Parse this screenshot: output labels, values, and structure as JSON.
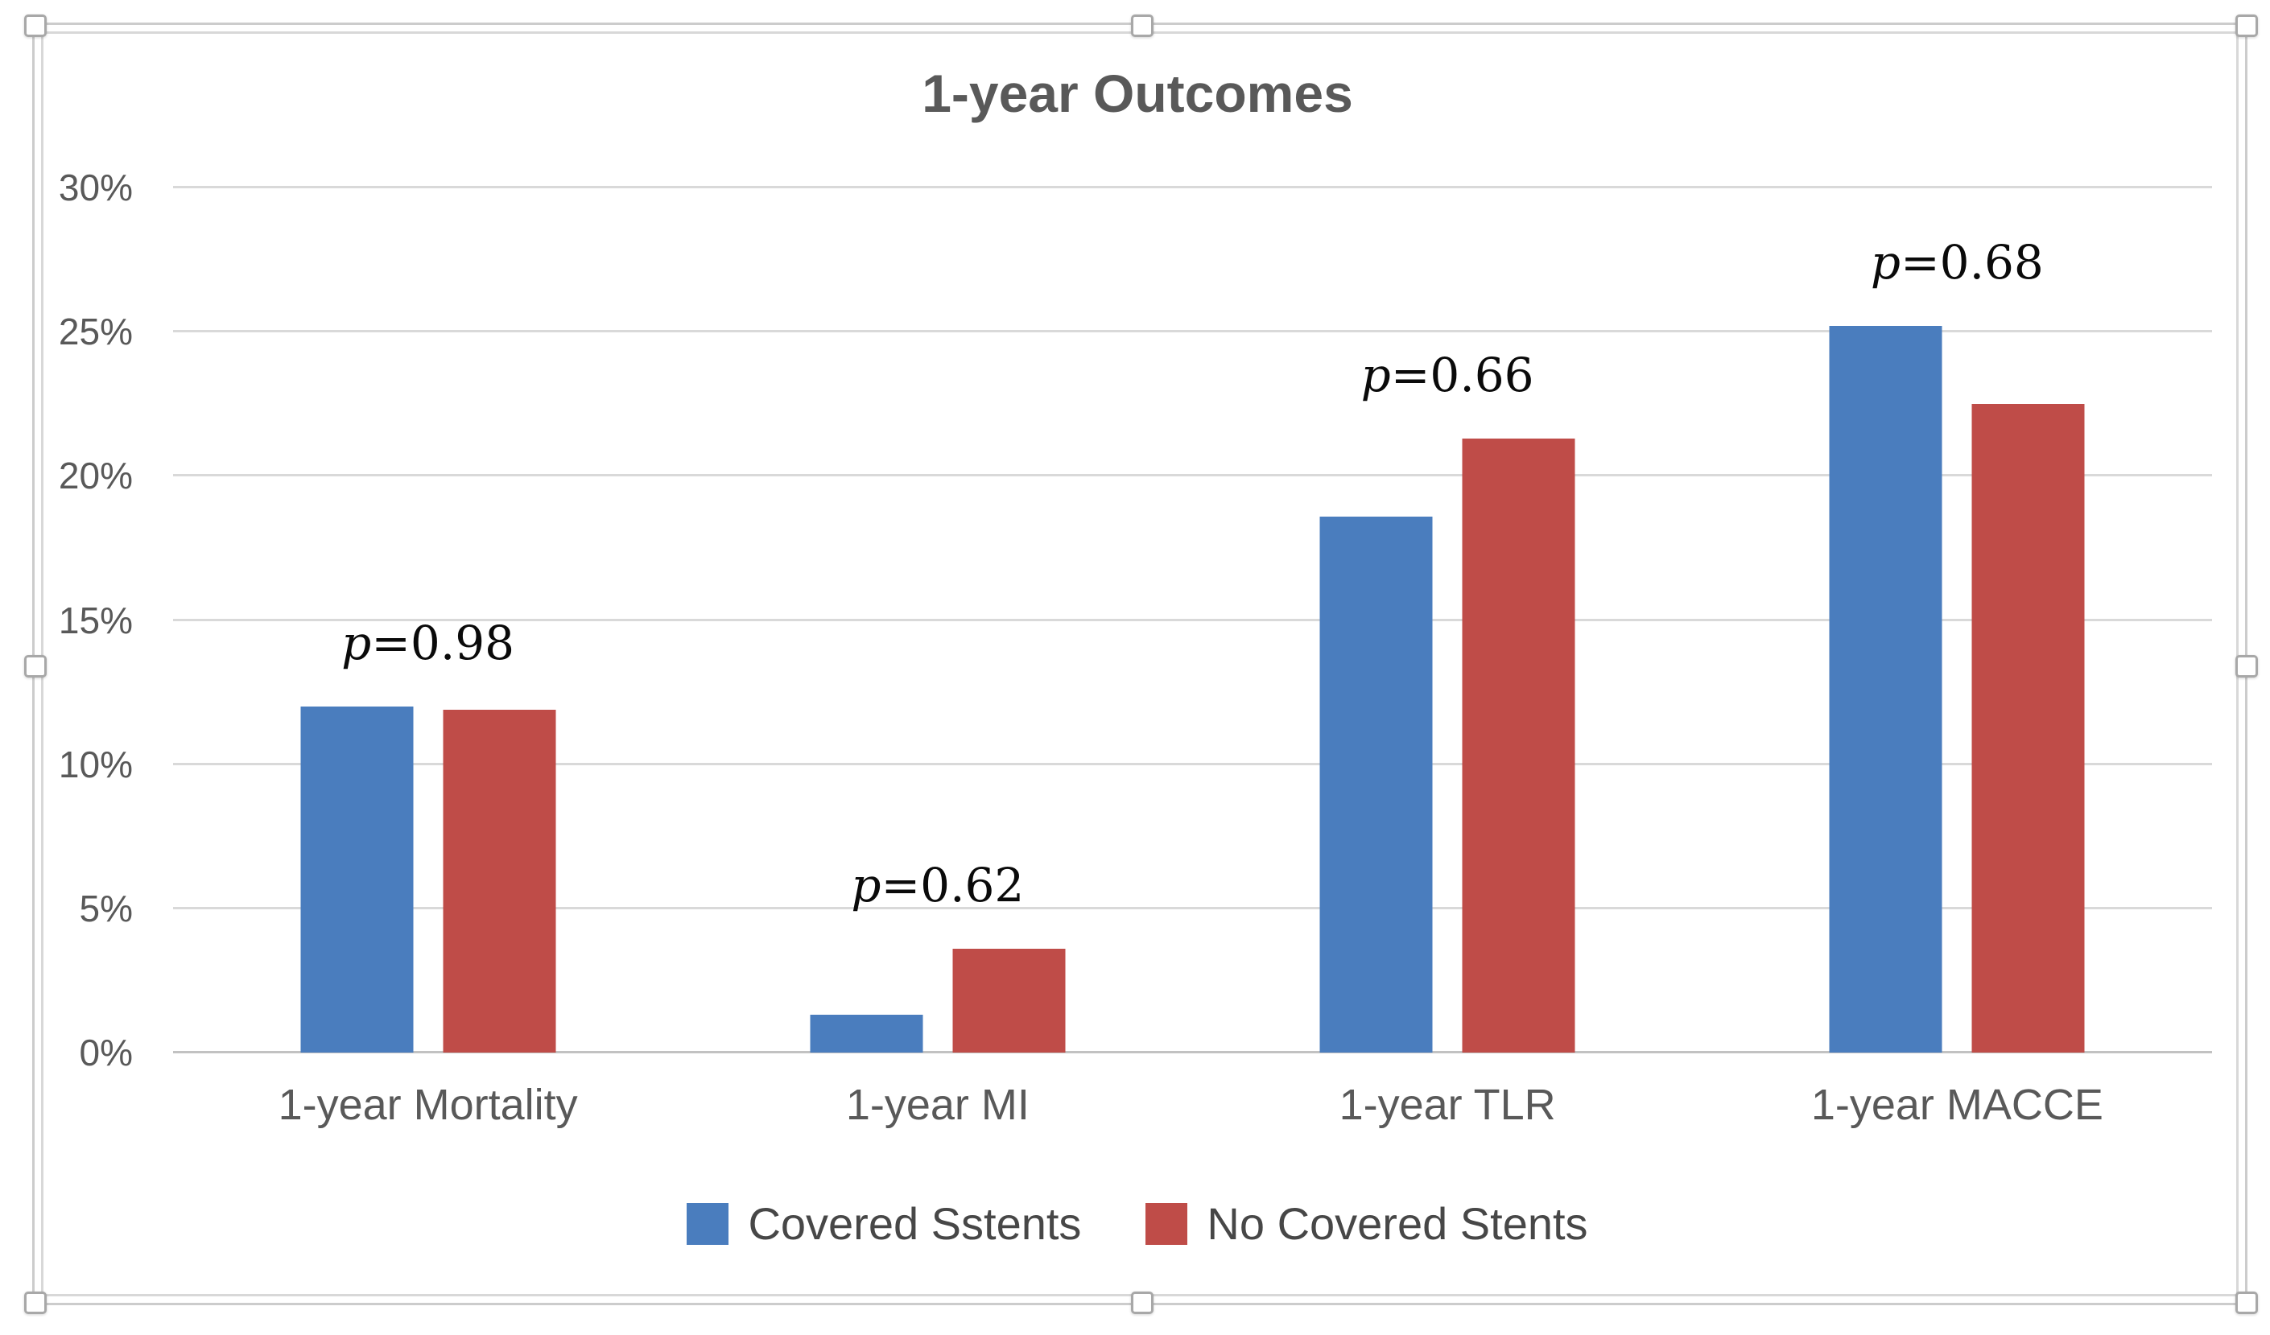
{
  "window": {
    "selected_object": "chart",
    "selection_handle_count": 8
  },
  "colors": {
    "series_blue": "#4A7DBE",
    "series_red": "#BF4C48",
    "gridline": "#D9D9D9",
    "axis_line": "#C2C2C2",
    "title_text": "#595959",
    "tick_text": "#595959",
    "legend_text": "#474747",
    "annotation_text": "#0A0A0A",
    "frame_border": "#CCCCCC"
  },
  "chart_data": {
    "type": "bar",
    "title": "1-year Outcomes",
    "categories": [
      "1-year Mortality",
      "1-year MI",
      "1-year TLR",
      "1-year MACCE"
    ],
    "series": [
      {
        "name": "Covered Sstents",
        "color": "#4A7DBE",
        "values": [
          12.0,
          1.3,
          18.6,
          25.2
        ]
      },
      {
        "name": "No Covered Stents",
        "color": "#BF4C48",
        "values": [
          11.9,
          3.6,
          21.3,
          22.5
        ]
      }
    ],
    "p_values": [
      {
        "label": "p=0.98",
        "var": "p",
        "rest": "=0.98"
      },
      {
        "label": "p=0.62",
        "var": "p",
        "rest": "=0.62"
      },
      {
        "label": "p=0.66",
        "var": "p",
        "rest": "=0.66"
      },
      {
        "label": "p=0.68",
        "var": "p",
        "rest": "=0.68"
      }
    ],
    "y_axis": {
      "min": 0,
      "max": 30,
      "ticks": [
        {
          "v": 0,
          "label": "0%"
        },
        {
          "v": 5,
          "label": "5%"
        },
        {
          "v": 10,
          "label": "10%"
        },
        {
          "v": 15,
          "label": "15%"
        },
        {
          "v": 20,
          "label": "20%"
        },
        {
          "v": 25,
          "label": "25%"
        },
        {
          "v": 30,
          "label": "30%"
        }
      ]
    },
    "xlabel": "",
    "ylabel": "",
    "grid": true,
    "legend_position": "bottom"
  }
}
